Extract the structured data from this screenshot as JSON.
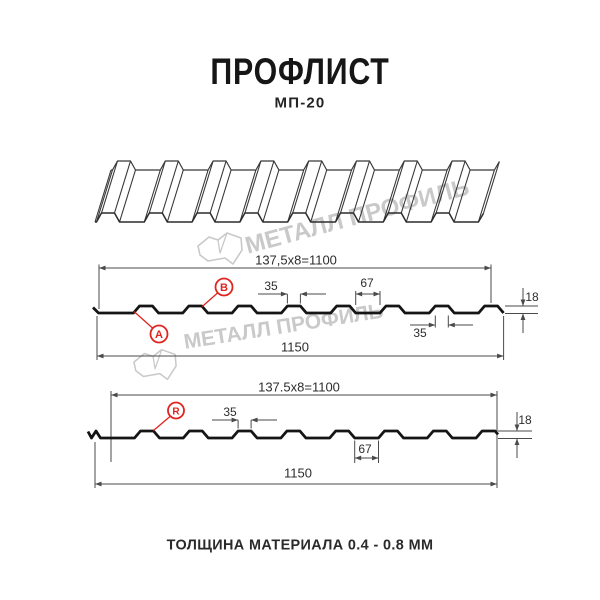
{
  "title": "ПРОФЛИСТ",
  "subtitle": "МП-20",
  "footer_note": "ТОЛЩИНА МАТЕРИАЛА 0.4 - 0.8 ММ",
  "watermark": {
    "text": "МЕТАЛЛ ПРОФИЛЬ"
  },
  "labels": {
    "side_a": "A",
    "side_b": "B",
    "radius": "R"
  },
  "colors": {
    "thick_line": "#151515",
    "thin_line": "#383838",
    "dim_line": "#4a4a4a",
    "accent_red": "#e02420",
    "watermark": "#c9c9c9",
    "text": "#1e1e1e"
  },
  "drawing1": {
    "dims": {
      "pitch_total": "137,5x8=1100",
      "rib_top_width": "35",
      "valley_width": "67",
      "profile_height": "18",
      "overall_width": "1150",
      "rib_bottom_width": "35"
    }
  },
  "drawing2": {
    "dims": {
      "pitch_total": "137.5x8=1100",
      "rib_top_width": "35",
      "valley_width": "67",
      "profile_height": "18",
      "overall_width": "1150"
    }
  }
}
